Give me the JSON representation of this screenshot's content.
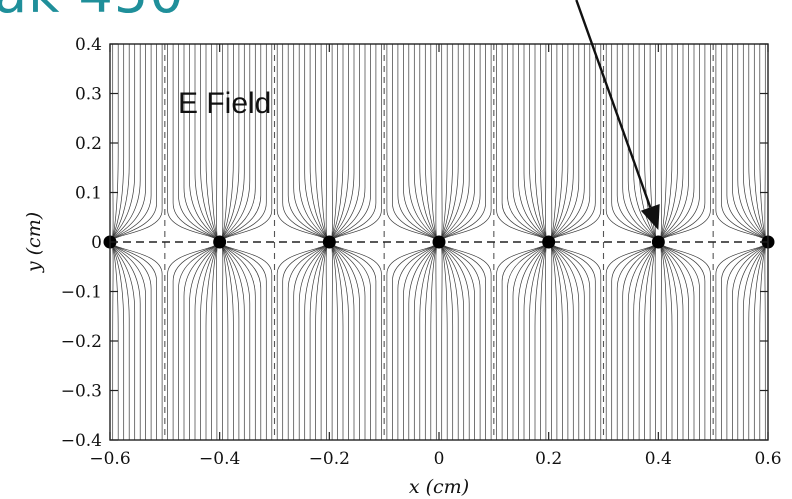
{
  "heading_fragment": "ak 450",
  "diagram": {
    "annotation": "E Field",
    "x_label": "x (cm)",
    "y_label": "y (cm)",
    "x_range": [
      -0.6,
      0.6
    ],
    "y_range": [
      -0.4,
      0.4
    ],
    "x_ticks": [
      {
        "value": -0.6,
        "label": "−0.6"
      },
      {
        "value": -0.4,
        "label": "−0.4"
      },
      {
        "value": -0.2,
        "label": "−0.2"
      },
      {
        "value": 0,
        "label": "0"
      },
      {
        "value": 0.2,
        "label": "0.2"
      },
      {
        "value": 0.4,
        "label": "0.4"
      },
      {
        "value": 0.6,
        "label": "0.6"
      }
    ],
    "y_ticks": [
      {
        "value": 0.4,
        "label": "0.4"
      },
      {
        "value": 0.3,
        "label": "0.3"
      },
      {
        "value": 0.2,
        "label": "0.2"
      },
      {
        "value": 0.1,
        "label": "0.1"
      },
      {
        "value": 0,
        "label": "0"
      },
      {
        "value": -0.1,
        "label": "−0.1"
      },
      {
        "value": -0.2,
        "label": "−0.2"
      },
      {
        "value": -0.3,
        "label": "−0.3"
      },
      {
        "value": -0.4,
        "label": "−0.4"
      }
    ],
    "wires_x": [
      -0.6,
      -0.4,
      -0.2,
      0,
      0.2,
      0.4,
      0.6
    ],
    "cell_boundaries_x": [
      -0.5,
      -0.3,
      -0.1,
      0.1,
      0.3,
      0.5
    ],
    "arrow_target_wire_x": 0.4,
    "line_color": "#3a3a3a",
    "wire_color": "#000000",
    "heading_color": "#1f8f9a"
  }
}
